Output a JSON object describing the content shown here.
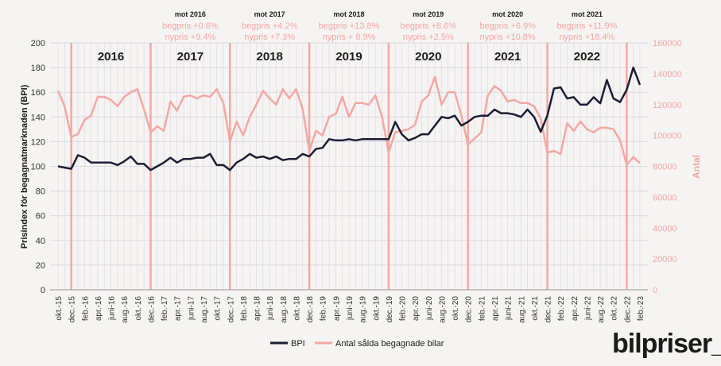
{
  "brand": {
    "name": "bilpriser_"
  },
  "chart_data": {
    "type": "line",
    "ylabel": "Prisindex för begagnatmarknaden (BPI)",
    "y2label": "Antal",
    "ylim": [
      0,
      200
    ],
    "y2lim": [
      0,
      160000
    ],
    "yticks": [
      "0",
      "20",
      "40",
      "60",
      "80",
      "100",
      "120",
      "140",
      "160",
      "180",
      "200"
    ],
    "y2ticks": [
      "0",
      "20000",
      "40000",
      "60000",
      "80000",
      "100000",
      "120000",
      "140000",
      "160000"
    ],
    "grid": true,
    "legend": "bottom",
    "colors": {
      "bpi": "#1b1e33",
      "antal": "#f4a7a3",
      "divider": "#f4a7a3",
      "grid": "#d7d8e6"
    },
    "x": [
      "okt.-15",
      "nov.-15",
      "dec.-15",
      "jan.-16",
      "feb.-16",
      "mars-16",
      "apr.-16",
      "maj-16",
      "juni-16",
      "juli-16",
      "aug.-16",
      "sep.-16",
      "okt.-16",
      "nov.-16",
      "dec.-16",
      "jan.-17",
      "feb.-17",
      "mars-17",
      "apr.-17",
      "maj-17",
      "juni-17",
      "juli-17",
      "aug.-17",
      "sep.-17",
      "okt.-17",
      "nov.-17",
      "dec.-17",
      "jan.-18",
      "feb.-18",
      "mars-18",
      "apr.-18",
      "maj-18",
      "juni-18",
      "juli-18",
      "aug.-18",
      "sep.-18",
      "okt.-18",
      "nov.-18",
      "dec.-18",
      "jan.-19",
      "feb.-19",
      "mars-19",
      "apr.-19",
      "maj-19",
      "juni-19",
      "juli-19",
      "aug.-19",
      "sep.-19",
      "okt.-19",
      "nov.-19",
      "dec.-19",
      "jan.-20",
      "feb.-20",
      "mars-20",
      "apr.-20",
      "maj-20",
      "juni-20",
      "juli-20",
      "aug.-20",
      "sep.-20",
      "okt.-20",
      "nov.-20",
      "dec.-20",
      "jan.-21",
      "feb.-21",
      "mars-21",
      "apr.-21",
      "maj-21",
      "juni-21",
      "juli-21",
      "aug.-21",
      "sep.-21",
      "okt.-21",
      "nov.-21",
      "dec.-21",
      "jan.-22",
      "feb.-22",
      "mars-22",
      "apr.-22",
      "maj-22",
      "juni-22",
      "juli-22",
      "aug.-22",
      "sep.-22",
      "okt.-22",
      "nov.-22",
      "dec.-22",
      "jan.-23",
      "feb.-23"
    ],
    "xtick_labels": [
      "okt.-15",
      "dec.-15",
      "feb.-16",
      "apr.-16",
      "juni-16",
      "aug.-16",
      "okt.-16",
      "dec.-16",
      "feb.-17",
      "apr.-17",
      "juni-17",
      "aug.-17",
      "okt.-17",
      "dec.-17",
      "feb.-18",
      "apr.-18",
      "juni-18",
      "aug.-18",
      "okt.-18",
      "dec.-18",
      "feb.-19",
      "apr.-19",
      "juni-19",
      "aug.-19",
      "okt.-19",
      "dec.-19",
      "feb.-20",
      "apr.-20",
      "juni-20",
      "aug.-20",
      "okt.-20",
      "dec.-20",
      "feb.-21",
      "apr.-21",
      "juni-21",
      "aug.-21",
      "okt.-21",
      "dec.-21",
      "feb.-22",
      "apr.-22",
      "juni-22",
      "aug.-22",
      "okt.-22",
      "dec.-22",
      "feb.-23"
    ],
    "dividers": [
      "dec.-15",
      "dec.-16",
      "dec.-17",
      "dec.-18",
      "dec.-19",
      "dec.-20",
      "dec.-21",
      "dec.-22"
    ],
    "years": [
      {
        "label": "2016",
        "at": "juni-16"
      },
      {
        "label": "2017",
        "at": "juni-17"
      },
      {
        "label": "2018",
        "at": "juni-18"
      },
      {
        "label": "2019",
        "at": "juni-19"
      },
      {
        "label": "2020",
        "at": "juni-20"
      },
      {
        "label": "2021",
        "at": "juni-21"
      },
      {
        "label": "2022",
        "at": "juni-22"
      }
    ],
    "comparisons": [
      {
        "head": "mot 2016",
        "begpris": "begpris +0.6%",
        "nypris": "nypris +9.4%",
        "at": "juni-17"
      },
      {
        "head": "mot 2017",
        "begpris": "begpris +4.2%",
        "nypris": "nypris +7.3%",
        "at": "juni-18"
      },
      {
        "head": "mot 2018",
        "begpris": "begpris +13.8%",
        "nypris": "nypris + 8.9%",
        "at": "juni-19"
      },
      {
        "head": "mot 2019",
        "begpris": "begpris +8.6%",
        "nypris": "nypris +2.5%",
        "at": "juni-20"
      },
      {
        "head": "mot 2020",
        "begpris": "begpris +6.9%",
        "nypris": "nypris +10.8%",
        "at": "juni-21"
      },
      {
        "head": "mot 2021",
        "begpris": "begpris +11.9%",
        "nypris": "nypris +18.4%",
        "at": "juni-22"
      }
    ],
    "series": [
      {
        "name": "BPI",
        "axis": "left",
        "values": [
          100,
          99,
          98,
          109,
          107,
          103,
          103,
          103,
          103,
          101,
          104,
          108,
          102,
          102,
          97,
          100,
          103,
          107,
          103,
          106,
          106,
          107,
          107,
          110,
          101,
          101,
          97,
          103,
          106,
          110,
          107,
          108,
          106,
          108,
          105,
          106,
          106,
          110,
          108,
          114,
          115,
          122,
          121,
          121,
          122,
          121,
          122,
          122,
          122,
          122,
          122,
          136,
          126,
          121,
          123,
          126,
          126,
          133,
          140,
          139,
          141,
          133,
          136,
          140,
          141,
          141,
          146,
          143,
          143,
          142,
          140,
          146,
          140,
          128,
          141,
          163,
          164,
          155,
          156,
          150,
          150,
          156,
          151,
          170,
          155,
          152,
          162,
          180,
          166
        ]
      },
      {
        "name": "Antal sålda begagnade bilar",
        "axis": "right",
        "values": [
          129000,
          119000,
          99000,
          101000,
          110000,
          113000,
          125000,
          125000,
          123000,
          119000,
          125000,
          128000,
          130000,
          117000,
          102000,
          106000,
          103000,
          122000,
          116000,
          125000,
          126000,
          124000,
          126000,
          125000,
          130000,
          121000,
          96000,
          109000,
          100000,
          112000,
          120000,
          129000,
          124000,
          120000,
          130000,
          124000,
          130000,
          117000,
          90000,
          103000,
          100000,
          112000,
          114000,
          125000,
          112000,
          121000,
          121000,
          120000,
          126000,
          112000,
          89000,
          102000,
          103000,
          104000,
          107000,
          122000,
          126000,
          138000,
          120000,
          128000,
          128000,
          113000,
          94000,
          98000,
          102000,
          126000,
          132000,
          129000,
          122000,
          123000,
          121000,
          121000,
          119000,
          111000,
          89000,
          90000,
          88000,
          108000,
          103000,
          109000,
          104000,
          102000,
          105000,
          105000,
          104000,
          97000,
          81000,
          86000,
          82000
        ]
      }
    ]
  }
}
